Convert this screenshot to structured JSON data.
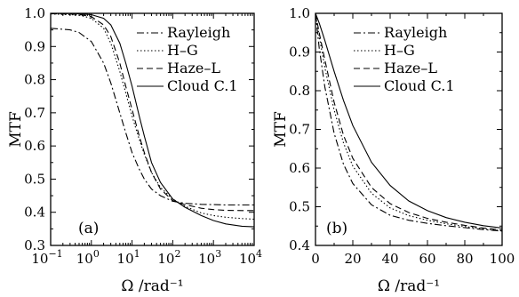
{
  "chart_data": [
    {
      "type": "line",
      "panel_label": "(a)",
      "xlabel": "Ω /rad⁻¹",
      "ylabel": "MTF",
      "xscale": "log",
      "xlim": [
        0.1,
        10000
      ],
      "ylim": [
        0.3,
        1.0
      ],
      "x_ticks": [
        {
          "value": 0.1,
          "base": "10",
          "exp": "−1"
        },
        {
          "value": 1,
          "base": "10",
          "exp": "0"
        },
        {
          "value": 10,
          "base": "10",
          "exp": "1"
        },
        {
          "value": 100,
          "base": "10",
          "exp": "2"
        },
        {
          "value": 1000,
          "base": "10",
          "exp": "3"
        },
        {
          "value": 10000,
          "base": "10",
          "exp": "4"
        }
      ],
      "y_ticks": [
        {
          "value": 0.3,
          "label": "0.3"
        },
        {
          "value": 0.4,
          "label": "0.4"
        },
        {
          "value": 0.5,
          "label": "0.5"
        },
        {
          "value": 0.6,
          "label": "0.6"
        },
        {
          "value": 0.7,
          "label": "0.7"
        },
        {
          "value": 0.8,
          "label": "0.8"
        },
        {
          "value": 0.9,
          "label": "0.9"
        },
        {
          "value": 1.0,
          "label": "1.0"
        }
      ],
      "legend_position": "top-right",
      "series": [
        {
          "name": "Rayleigh",
          "style": "dash-dot",
          "x": [
            0.1,
            0.3,
            0.5,
            1,
            2,
            3,
            5,
            7,
            10,
            15,
            20,
            30,
            50,
            100,
            200,
            500,
            1000,
            2000,
            5000,
            10000
          ],
          "y": [
            0.955,
            0.95,
            0.942,
            0.915,
            0.85,
            0.79,
            0.7,
            0.64,
            0.58,
            0.53,
            0.5,
            0.47,
            0.45,
            0.433,
            0.427,
            0.424,
            0.423,
            0.422,
            0.422,
            0.422
          ]
        },
        {
          "name": "H–G",
          "style": "dotted",
          "x": [
            0.1,
            0.5,
            1,
            2,
            3,
            5,
            7,
            10,
            15,
            20,
            30,
            50,
            100,
            200,
            500,
            1000,
            2000,
            5000,
            10000
          ],
          "y": [
            0.998,
            0.995,
            0.985,
            0.955,
            0.91,
            0.825,
            0.76,
            0.69,
            0.62,
            0.575,
            0.52,
            0.475,
            0.44,
            0.418,
            0.398,
            0.39,
            0.385,
            0.381,
            0.379
          ]
        },
        {
          "name": "Haze–L",
          "style": "dashed",
          "x": [
            0.1,
            0.5,
            1,
            2,
            3,
            5,
            7,
            10,
            15,
            20,
            30,
            50,
            100,
            200,
            500,
            1000,
            2000,
            5000,
            10000
          ],
          "y": [
            0.999,
            0.997,
            0.99,
            0.965,
            0.93,
            0.85,
            0.78,
            0.71,
            0.63,
            0.58,
            0.52,
            0.47,
            0.435,
            0.423,
            0.412,
            0.408,
            0.406,
            0.405,
            0.405
          ]
        },
        {
          "name": "Cloud C.1",
          "style": "solid",
          "x": [
            0.1,
            0.5,
            1,
            2,
            3,
            5,
            7,
            10,
            15,
            20,
            30,
            50,
            100,
            200,
            500,
            1000,
            2000,
            5000,
            10000
          ],
          "y": [
            1.0,
            0.999,
            0.996,
            0.985,
            0.965,
            0.91,
            0.85,
            0.78,
            0.69,
            0.63,
            0.55,
            0.49,
            0.44,
            0.415,
            0.39,
            0.375,
            0.365,
            0.358,
            0.356
          ]
        }
      ]
    },
    {
      "type": "line",
      "panel_label": "(b)",
      "xlabel": "Ω /rad⁻¹",
      "ylabel": "MTF",
      "xscale": "linear",
      "xlim": [
        0,
        100
      ],
      "ylim": [
        0.4,
        1.0
      ],
      "x_ticks": [
        {
          "value": 0,
          "label": "0"
        },
        {
          "value": 20,
          "label": "20"
        },
        {
          "value": 40,
          "label": "40"
        },
        {
          "value": 60,
          "label": "60"
        },
        {
          "value": 80,
          "label": "80"
        },
        {
          "value": 100,
          "label": "100"
        }
      ],
      "y_ticks": [
        {
          "value": 0.4,
          "label": "0.4"
        },
        {
          "value": 0.5,
          "label": "0.5"
        },
        {
          "value": 0.6,
          "label": "0.6"
        },
        {
          "value": 0.7,
          "label": "0.7"
        },
        {
          "value": 0.8,
          "label": "0.8"
        },
        {
          "value": 0.9,
          "label": "0.9"
        },
        {
          "value": 1.0,
          "label": "1.0"
        }
      ],
      "legend_position": "top-right",
      "series": [
        {
          "name": "Rayleigh",
          "style": "dash-dot",
          "x": [
            0,
            2,
            5,
            10,
            15,
            20,
            30,
            40,
            50,
            60,
            70,
            80,
            90,
            100
          ],
          "y": [
            1.0,
            0.91,
            0.81,
            0.69,
            0.61,
            0.56,
            0.505,
            0.478,
            0.465,
            0.457,
            0.451,
            0.446,
            0.441,
            0.437
          ]
        },
        {
          "name": "H–G",
          "style": "dotted",
          "x": [
            0,
            2,
            5,
            10,
            15,
            20,
            30,
            40,
            50,
            60,
            70,
            80,
            90,
            100
          ],
          "y": [
            1.0,
            0.94,
            0.86,
            0.75,
            0.665,
            0.605,
            0.535,
            0.497,
            0.477,
            0.465,
            0.456,
            0.449,
            0.443,
            0.438
          ]
        },
        {
          "name": "Haze–L",
          "style": "dashed",
          "x": [
            0,
            2,
            5,
            10,
            15,
            20,
            30,
            40,
            50,
            60,
            70,
            80,
            90,
            100
          ],
          "y": [
            1.0,
            0.95,
            0.88,
            0.77,
            0.685,
            0.625,
            0.55,
            0.508,
            0.485,
            0.47,
            0.46,
            0.452,
            0.445,
            0.44
          ]
        },
        {
          "name": "Cloud C.1",
          "style": "solid",
          "x": [
            0,
            2,
            5,
            10,
            15,
            20,
            30,
            40,
            50,
            60,
            70,
            80,
            90,
            100
          ],
          "y": [
            1.0,
            0.975,
            0.93,
            0.85,
            0.775,
            0.71,
            0.615,
            0.555,
            0.515,
            0.49,
            0.472,
            0.46,
            0.451,
            0.445
          ]
        }
      ]
    }
  ]
}
